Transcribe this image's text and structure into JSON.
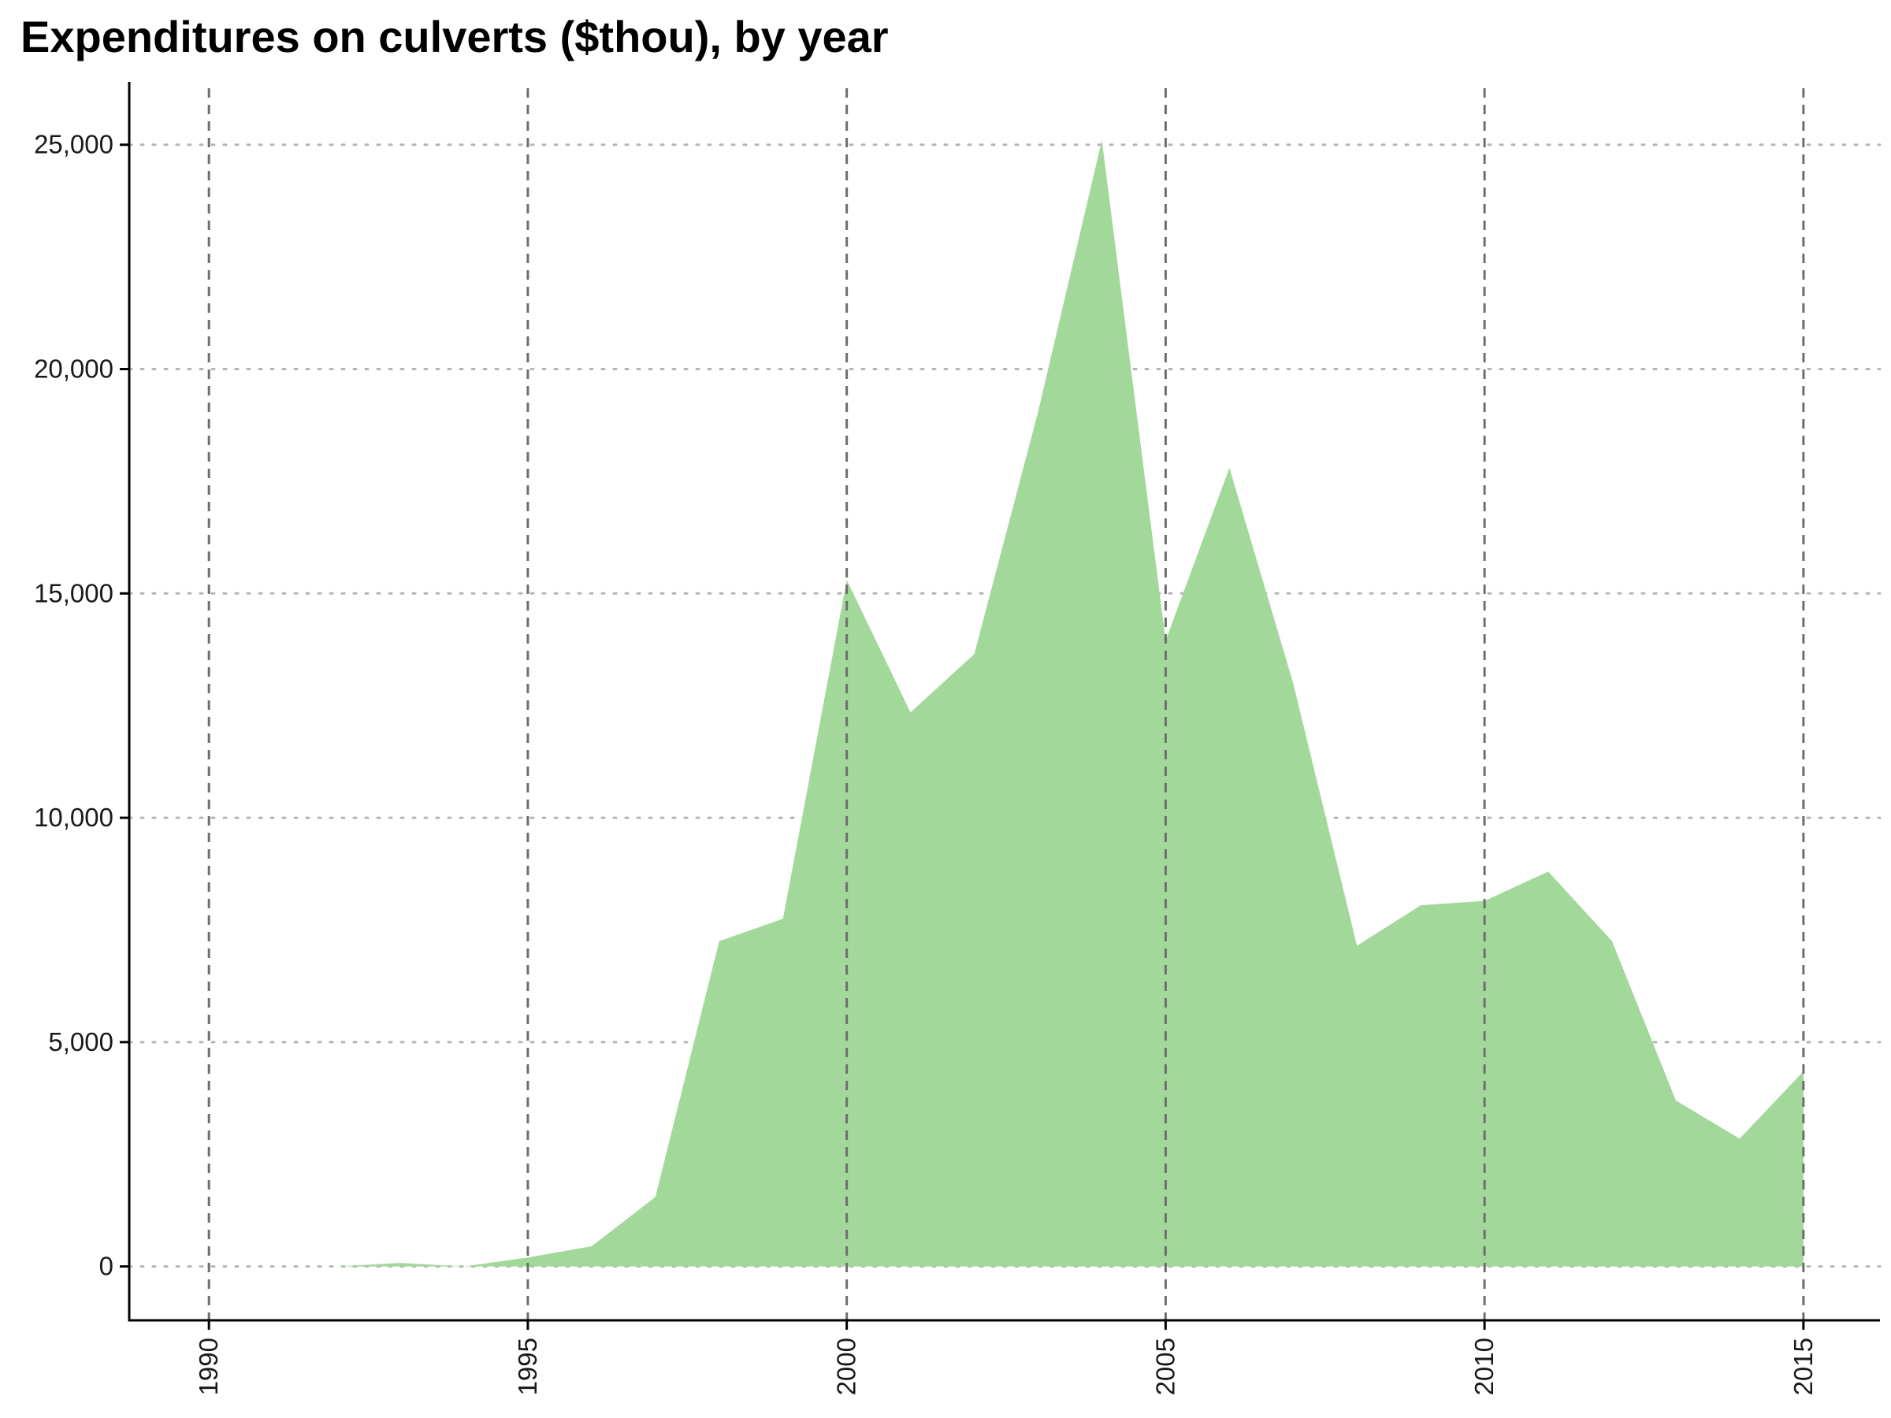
{
  "chart_data": {
    "type": "area",
    "title": "Expenditures on culverts ($thou), by year",
    "xlabel": "",
    "ylabel": "",
    "x": [
      1990,
      1991,
      1992,
      1993,
      1994,
      1995,
      1996,
      1997,
      1998,
      1999,
      2000,
      2001,
      2002,
      2003,
      2004,
      2005,
      2006,
      2007,
      2008,
      2009,
      2010,
      2011,
      2012,
      2013,
      2014,
      2015
    ],
    "series": [
      {
        "values": [
          0,
          0,
          0,
          80,
          0,
          200,
          450,
          1550,
          7250,
          7750,
          15300,
          12350,
          13650,
          19050,
          25100,
          13950,
          17800,
          13000,
          7150,
          8050,
          8150,
          8800,
          7250,
          3700,
          2850,
          4350
        ]
      }
    ],
    "xlim": [
      1988.75,
      2016.2
    ],
    "ylim": [
      -1200,
      26400
    ],
    "x_ticks": [
      1990,
      1995,
      2000,
      2005,
      2010,
      2015
    ],
    "y_ticks": [
      0,
      5000,
      10000,
      15000,
      20000,
      25000
    ],
    "x_tick_labels": [
      "1990",
      "1995",
      "2000",
      "2005",
      "2010",
      "2015"
    ],
    "y_tick_labels": [
      "0",
      "5,000",
      "10,000",
      "15,000",
      "20,000",
      "25,000"
    ],
    "grid": {
      "vertical": "dashed",
      "horizontal": "dotted"
    },
    "legend": "none",
    "colors": {
      "area_fill": "#a3d89b",
      "vertical_grid": "#6e6e6e",
      "horizontal_grid": "#b5b5b5",
      "axis": "#000000",
      "text": "#1a1a1a"
    }
  }
}
